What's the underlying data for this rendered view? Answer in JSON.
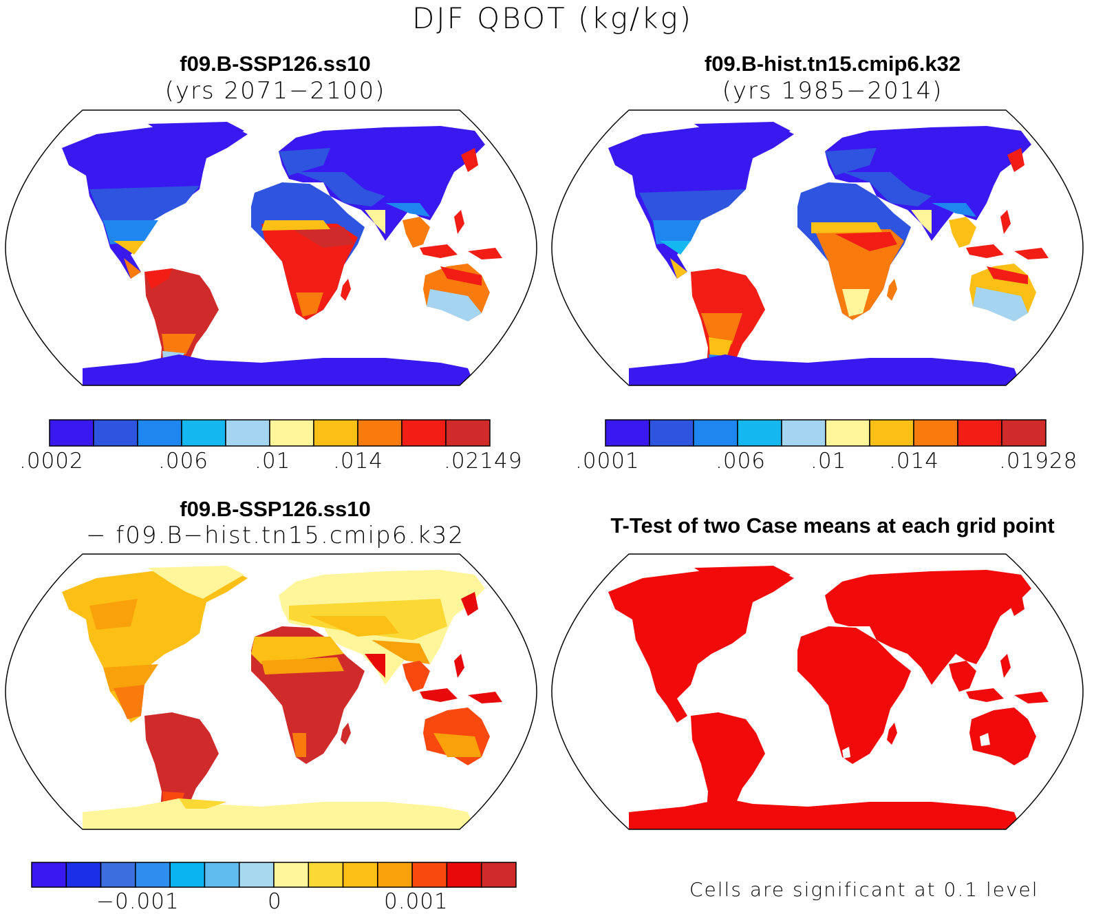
{
  "figure": {
    "title": "DJF QBOT (kg/kg)"
  },
  "panels": [
    {
      "id": "case1",
      "title": "f09.B-SSP126.ss10",
      "subtitle": "(yrs 2071−2100)",
      "colorbar": {
        "colors": [
          "#3a18f0",
          "#2f54e0",
          "#1f86ef",
          "#14b7f0",
          "#a4d4ef",
          "#fff59b",
          "#fbbf16",
          "#f97a0d",
          "#f21d14",
          "#d02b2b"
        ],
        "tick_labels": [
          ".0002",
          ".006",
          ".01",
          ".014",
          ".02149"
        ],
        "tick_positions": [
          0,
          2,
          3,
          4,
          5,
          6,
          7,
          8,
          9,
          10
        ]
      }
    },
    {
      "id": "case2",
      "title": "f09.B-hist.tn15.cmip6.k32",
      "subtitle": "(yrs 1985−2014)",
      "colorbar": {
        "colors": [
          "#3a18f0",
          "#2f54e0",
          "#1f86ef",
          "#14b7f0",
          "#a4d4ef",
          "#fff59b",
          "#fbbf16",
          "#f97a0d",
          "#f21d14",
          "#d02b2b"
        ],
        "tick_labels": [
          ".0001",
          ".006",
          ".01",
          ".014",
          ".01928"
        ]
      }
    },
    {
      "id": "diff",
      "title": "f09.B-SSP126.ss10",
      "subtitle": "− f09.B−hist.tn15.cmip6.k32",
      "colorbar": {
        "colors": [
          "#3a18f0",
          "#1b2ee8",
          "#3d6ee0",
          "#2f8df0",
          "#0ab4f0",
          "#5fbbed",
          "#a8d8ef",
          "#fff59b",
          "#fcd835",
          "#fbbf16",
          "#f9a10a",
          "#f9490f",
          "#e80a0a",
          "#d02b2b"
        ],
        "tick_labels": [
          "−0.001",
          "0",
          "0.001"
        ]
      }
    },
    {
      "id": "ttest",
      "title": "T-Test of two Case means at each grid point",
      "note": "Cells are significant at 0.1 level"
    }
  ],
  "colors": {
    "ocean": "#ffffff",
    "coast": "#000000",
    "significant": "#f20a0a"
  }
}
